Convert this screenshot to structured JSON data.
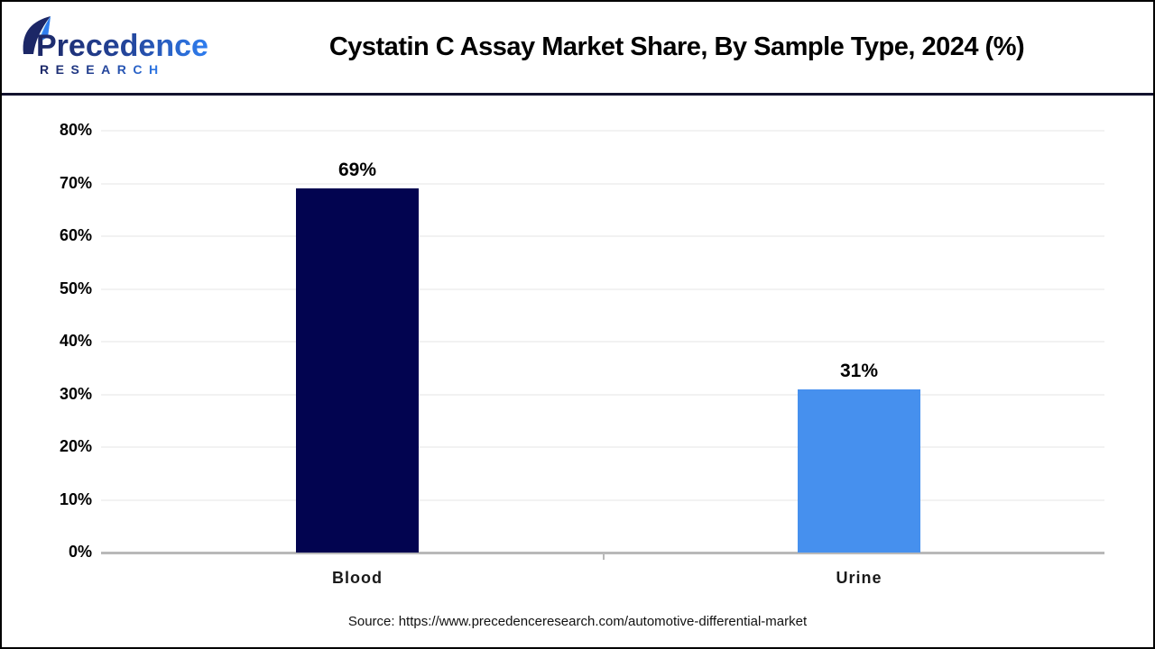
{
  "header": {
    "logo": {
      "line1": "Precedence",
      "line2": "RESEARCH"
    },
    "title": "Cystatin C Assay Market Share, By Sample Type, 2024 (%)"
  },
  "chart_data": {
    "type": "bar",
    "title": "Cystatin C Assay Market Share, By Sample Type, 2024 (%)",
    "categories": [
      "Blood",
      "Urine"
    ],
    "values": [
      69,
      31
    ],
    "value_labels": [
      "69%",
      "31%"
    ],
    "xlabel": "",
    "ylabel": "",
    "ylim": [
      0,
      80
    ],
    "ytick_step": 10,
    "ytick_labels": [
      "0%",
      "10%",
      "20%",
      "30%",
      "40%",
      "50%",
      "60%",
      "70%",
      "80%"
    ],
    "grid": true,
    "legend": "none",
    "bar_colors": [
      "#020450",
      "#4690ee"
    ]
  },
  "footer": {
    "source": "Source: https://www.precedenceresearch.com/automotive-differential-market"
  },
  "colors": {
    "bar_blood": "#020450",
    "bar_urine": "#4690ee",
    "divider": "#12122e",
    "axis": "#b9b9b9",
    "gridline": "#f2f2f2",
    "logo_navy": "#1c2766",
    "logo_blue": "#2f7ef0",
    "logo_light_blue": "#7cc4f5"
  }
}
